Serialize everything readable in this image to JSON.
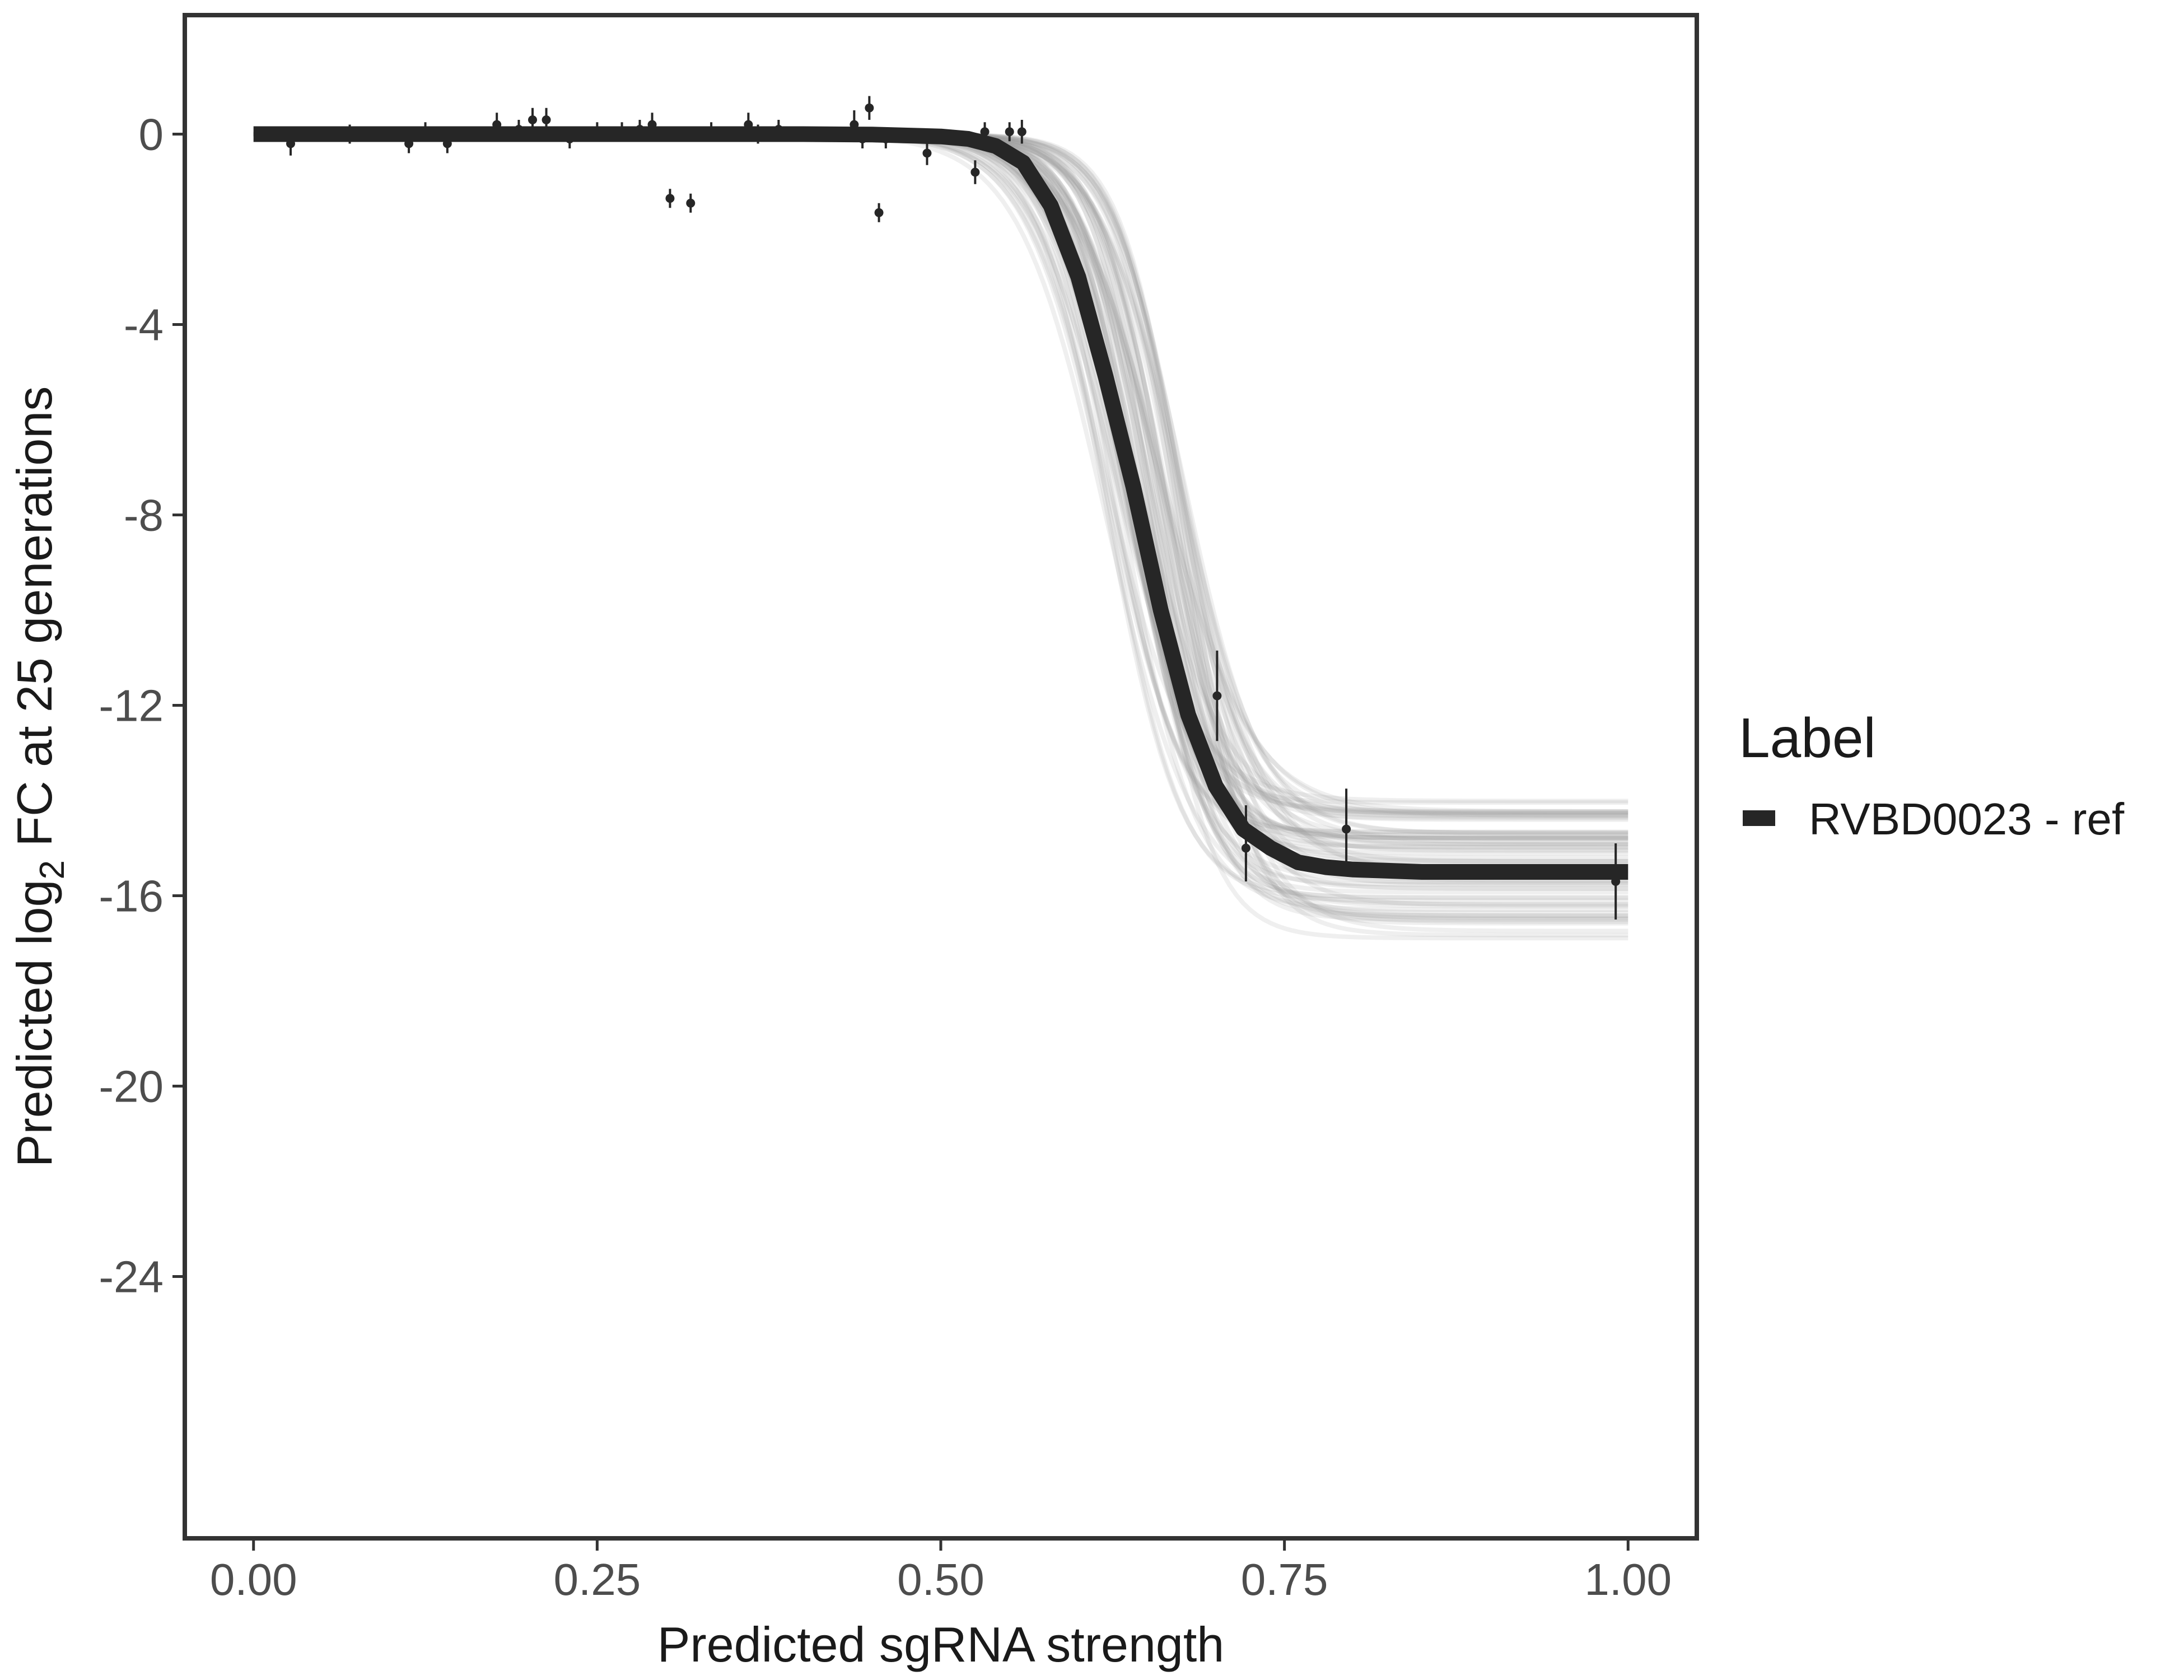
{
  "chart_data": {
    "type": "line",
    "xlabel": "Predicted sgRNA strength",
    "ylabel_parts": [
      "Predicted  log",
      "2",
      " FC at 25 generations"
    ],
    "xlim": [
      -0.05,
      1.05
    ],
    "ylim": [
      -29.5,
      2.5
    ],
    "x_ticks": [
      0,
      0.25,
      0.5,
      0.75,
      1
    ],
    "x_tick_labels": [
      "0.00",
      "0.25",
      "0.50",
      "0.75",
      "1.00"
    ],
    "y_ticks": [
      0,
      -4,
      -8,
      -12,
      -16,
      -20,
      -24
    ],
    "y_tick_labels": [
      "0",
      "-4",
      "-8",
      "-12",
      "-16",
      "-20",
      "-24"
    ],
    "grid": false,
    "legend": {
      "title": "Label",
      "position": "right",
      "entries": [
        "RVBD0023 - ref"
      ]
    },
    "colors": {
      "main_line": "#262626",
      "posterior_lines": "#9e9e9e",
      "points": "#262626",
      "frame": "#333333"
    },
    "series": [
      {
        "name": "RVBD0023 - ref",
        "kind": "fitted_curve",
        "x": [
          0.0,
          0.05,
          0.1,
          0.15,
          0.2,
          0.25,
          0.3,
          0.35,
          0.4,
          0.45,
          0.5,
          0.52,
          0.54,
          0.56,
          0.58,
          0.6,
          0.62,
          0.64,
          0.66,
          0.68,
          0.7,
          0.72,
          0.74,
          0.76,
          0.78,
          0.8,
          0.85,
          0.9,
          0.95,
          1.0
        ],
        "y": [
          0.0,
          0.0,
          0.0,
          0.0,
          0.0,
          0.0,
          0.0,
          0.0,
          0.0,
          -0.01,
          -0.05,
          -0.1,
          -0.25,
          -0.6,
          -1.5,
          -3.0,
          -5.1,
          -7.4,
          -10.0,
          -12.2,
          -13.7,
          -14.6,
          -15.0,
          -15.3,
          -15.4,
          -15.45,
          -15.5,
          -15.5,
          -15.5,
          -15.5
        ]
      }
    ],
    "posterior_band": {
      "description_values": "spread of posterior sample curves",
      "midpoint_range": [
        0.62,
        0.68
      ],
      "plateau_range": [
        -16.9,
        -14.0
      ],
      "slope_range": [
        30,
        45
      ]
    },
    "points": [
      {
        "x": 0.027,
        "y": -0.2,
        "err": 0.25
      },
      {
        "x": 0.07,
        "y": 0.0,
        "err": 0.2
      },
      {
        "x": 0.08,
        "y": 0.0,
        "err": 0.15
      },
      {
        "x": 0.113,
        "y": -0.2,
        "err": 0.2
      },
      {
        "x": 0.125,
        "y": 0.05,
        "err": 0.2
      },
      {
        "x": 0.141,
        "y": -0.2,
        "err": 0.2
      },
      {
        "x": 0.177,
        "y": 0.2,
        "err": 0.25
      },
      {
        "x": 0.193,
        "y": 0.1,
        "err": 0.2
      },
      {
        "x": 0.203,
        "y": 0.3,
        "err": 0.25
      },
      {
        "x": 0.213,
        "y": 0.3,
        "err": 0.25
      },
      {
        "x": 0.23,
        "y": -0.1,
        "err": 0.2
      },
      {
        "x": 0.25,
        "y": 0.05,
        "err": 0.2
      },
      {
        "x": 0.268,
        "y": 0.05,
        "err": 0.2
      },
      {
        "x": 0.281,
        "y": 0.1,
        "err": 0.2
      },
      {
        "x": 0.29,
        "y": 0.2,
        "err": 0.25
      },
      {
        "x": 0.303,
        "y": -1.35,
        "err": 0.2
      },
      {
        "x": 0.318,
        "y": -1.45,
        "err": 0.2
      },
      {
        "x": 0.333,
        "y": 0.05,
        "err": 0.2
      },
      {
        "x": 0.36,
        "y": 0.2,
        "err": 0.25
      },
      {
        "x": 0.367,
        "y": 0.0,
        "err": 0.2
      },
      {
        "x": 0.382,
        "y": 0.1,
        "err": 0.2
      },
      {
        "x": 0.41,
        "y": 0.0,
        "err": 0.15
      },
      {
        "x": 0.437,
        "y": 0.2,
        "err": 0.3
      },
      {
        "x": 0.443,
        "y": -0.1,
        "err": 0.2
      },
      {
        "x": 0.448,
        "y": 0.55,
        "err": 0.25
      },
      {
        "x": 0.455,
        "y": -1.65,
        "err": 0.2
      },
      {
        "x": 0.46,
        "y": -0.1,
        "err": 0.2
      },
      {
        "x": 0.49,
        "y": -0.4,
        "err": 0.25
      },
      {
        "x": 0.525,
        "y": -0.8,
        "err": 0.25
      },
      {
        "x": 0.532,
        "y": 0.05,
        "err": 0.2
      },
      {
        "x": 0.55,
        "y": 0.05,
        "err": 0.2
      },
      {
        "x": 0.559,
        "y": 0.05,
        "err": 0.25
      },
      {
        "x": 0.701,
        "y": -11.8,
        "err": 0.95
      },
      {
        "x": 0.722,
        "y": -14.7,
        "err": 0.6
      },
      {
        "x": 0.722,
        "y": -15.0,
        "err": 0.7
      },
      {
        "x": 0.795,
        "y": -14.6,
        "err": 0.85
      },
      {
        "x": 0.991,
        "y": -15.7,
        "err": 0.8
      }
    ]
  }
}
